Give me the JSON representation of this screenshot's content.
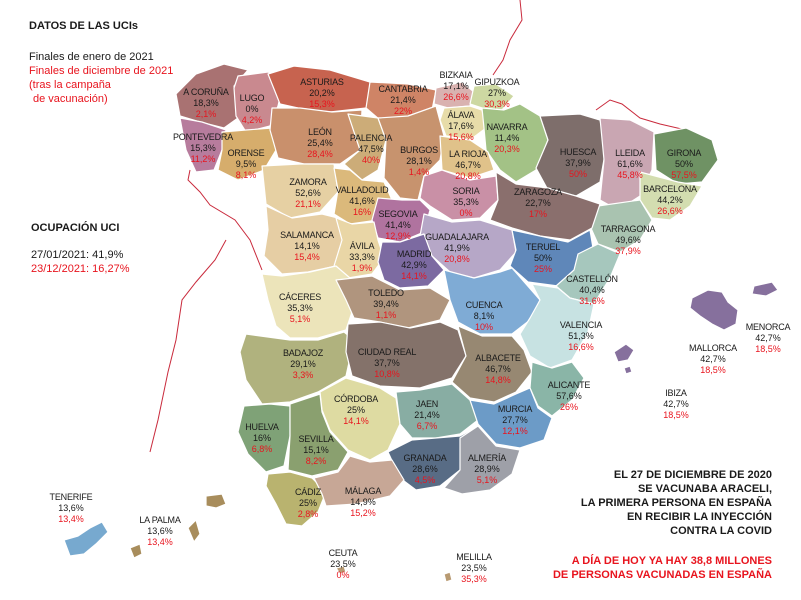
{
  "header": {
    "title": "DATOS DE LAS UCIs",
    "legend_2021_start": "Finales de enero de 2021",
    "legend_2021_end": "Finales de diciembre de 2021",
    "legend_note_1": " (tras la campaña",
    "legend_note_2": "de vacunación)"
  },
  "occupancy": {
    "title": "OCUPACIÓN UCI",
    "jan": "27/01/2021: 41,9%",
    "dec": "23/12/2021: 16,27%"
  },
  "note": {
    "lines": [
      "EL 27 DE DICIEMBRE DE 2020",
      "SE VACUNABA ARACELI,",
      "LA PRIMERA PERSONA EN ESPAÑA",
      "EN RECIBIR LA INYECCIÓN",
      "CONTRA LA COVID"
    ],
    "red_lines": [
      "A DÍA DE HOY YA HAY 38,8 MILLONES",
      "DE PERSONAS VACUNADAS EN ESPAÑA"
    ]
  },
  "colors": {
    "accent_red": "#e8141e",
    "text": "#1a1a1a",
    "border": "#c92a3c"
  },
  "provinces": [
    {
      "id": "a-coruna",
      "name": "A Coruña",
      "jan": "18,3%",
      "dec": "2,1%",
      "color": "#a97272"
    },
    {
      "id": "lugo",
      "name": "Lugo",
      "jan": "0%",
      "dec": "4,2%",
      "color": "#c9898f"
    },
    {
      "id": "asturias",
      "name": "Asturias",
      "jan": "20,2%",
      "dec": "15,3%",
      "color": "#c7634f"
    },
    {
      "id": "cantabria",
      "name": "Cantabria",
      "jan": "21,4%",
      "dec": "22%",
      "color": "#cf8466"
    },
    {
      "id": "bizkaia",
      "name": "Bizkaia",
      "jan": "17,1%",
      "dec": "26,6%",
      "color": "#d9b2b0"
    },
    {
      "id": "gipuzkoa",
      "name": "Gipuzkoa",
      "jan": "27%",
      "dec": "30,3%",
      "color": "#cdd8a2"
    },
    {
      "id": "alava",
      "name": "Álava",
      "jan": "17,6%",
      "dec": "15,6%",
      "color": "#e7dca9"
    },
    {
      "id": "navarra",
      "name": "Navarra",
      "jan": "11,4%",
      "dec": "20,3%",
      "color": "#a3c286"
    },
    {
      "id": "huesca",
      "name": "Huesca",
      "jan": "37,9%",
      "dec": "50%",
      "color": "#7e6e6b"
    },
    {
      "id": "lleida",
      "name": "Lleida",
      "jan": "61,6%",
      "dec": "45,8%",
      "color": "#c9a6b2"
    },
    {
      "id": "girona",
      "name": "Girona",
      "jan": "50%",
      "dec": "57,5%",
      "color": "#6f9264"
    },
    {
      "id": "barcelona",
      "name": "Barcelona",
      "jan": "44,2%",
      "dec": "26,6%",
      "color": "#d3ddb0"
    },
    {
      "id": "tarragona",
      "name": "Tarragona",
      "jan": "49,6%",
      "dec": "37,9%",
      "color": "#a9c3b0"
    },
    {
      "id": "pontevedra",
      "name": "Pontevedra",
      "jan": "15,3%",
      "dec": "11,2%",
      "color": "#b77c9d"
    },
    {
      "id": "orense",
      "name": "Orense",
      "jan": "9,5%",
      "dec": "8,1%",
      "color": "#d6ad6c"
    },
    {
      "id": "leon",
      "name": "León",
      "jan": "25,4%",
      "dec": "28,4%",
      "color": "#c9906c"
    },
    {
      "id": "palencia",
      "name": "Palencia",
      "jan": "47,5%",
      "dec": "40%",
      "color": "#ccac78"
    },
    {
      "id": "burgos",
      "name": "Burgos",
      "jan": "28,1%",
      "dec": "1,4%",
      "color": "#c7936e"
    },
    {
      "id": "la-rioja",
      "name": "La Rioja",
      "jan": "46,7%",
      "dec": "20,8%",
      "color": "#e0c28a"
    },
    {
      "id": "zamora",
      "name": "Zamora",
      "jan": "52,6%",
      "dec": "21,1%",
      "color": "#e6d0a3"
    },
    {
      "id": "valladolid",
      "name": "Valladolid",
      "jan": "41,6%",
      "dec": "16%",
      "color": "#dbb97b"
    },
    {
      "id": "soria",
      "name": "Soria",
      "jan": "35,3%",
      "dec": "0%",
      "color": "#c990a6"
    },
    {
      "id": "zaragoza",
      "name": "Zaragoza",
      "jan": "22,7%",
      "dec": "17%",
      "color": "#8a6f6d"
    },
    {
      "id": "segovia",
      "name": "Segovia",
      "jan": "41,4%",
      "dec": "12,9%",
      "color": "#b0739f"
    },
    {
      "id": "salamanca",
      "name": "Salamanca",
      "jan": "14,1%",
      "dec": "15,4%",
      "color": "#e6cea4"
    },
    {
      "id": "avila",
      "name": "Ávila",
      "jan": "33,3%",
      "dec": "1,9%",
      "color": "#e9d6a6"
    },
    {
      "id": "guadalajara",
      "name": "Guadalajara",
      "jan": "41,9%",
      "dec": "20,8%",
      "color": "#b6a7c7"
    },
    {
      "id": "teruel",
      "name": "Teruel",
      "jan": "50%",
      "dec": "25%",
      "color": "#5f87b9"
    },
    {
      "id": "madrid",
      "name": "Madrid",
      "jan": "42,9%",
      "dec": "14,1%",
      "color": "#7c6aa1"
    },
    {
      "id": "castellon",
      "name": "Castellón",
      "jan": "40,4%",
      "dec": "31,6%",
      "color": "#a6c7bd"
    },
    {
      "id": "caceres",
      "name": "Cáceres",
      "jan": "35,3%",
      "dec": "5,1%",
      "color": "#ece4ba"
    },
    {
      "id": "toledo",
      "name": "Toledo",
      "jan": "39,4%",
      "dec": "1,1%",
      "color": "#b0957e"
    },
    {
      "id": "cuenca",
      "name": "Cuenca",
      "jan": "8,1%",
      "dec": "10%",
      "color": "#7fabd5"
    },
    {
      "id": "valencia",
      "name": "Valencia",
      "jan": "51,3%",
      "dec": "16,6%",
      "color": "#c7e2e2"
    },
    {
      "id": "badajoz",
      "name": "Badajoz",
      "jan": "29,1%",
      "dec": "3,3%",
      "color": "#b0b27e"
    },
    {
      "id": "ciudad-real",
      "name": "Ciudad Real",
      "jan": "37,7%",
      "dec": "10,8%",
      "color": "#84726a"
    },
    {
      "id": "albacete",
      "name": "Albacete",
      "jan": "46,7%",
      "dec": "14,8%",
      "color": "#978872"
    },
    {
      "id": "alicante",
      "name": "Alicante",
      "jan": "57,6%",
      "dec": "26%",
      "color": "#8ab5a7"
    },
    {
      "id": "cordoba",
      "name": "Córdoba",
      "jan": "25%",
      "dec": "14,1%",
      "color": "#dedba2"
    },
    {
      "id": "jaen",
      "name": "Jaen",
      "jan": "21,4%",
      "dec": "6,7%",
      "color": "#88ada3"
    },
    {
      "id": "murcia",
      "name": "Murcia",
      "jan": "27,7%",
      "dec": "12,1%",
      "color": "#6c9bc7"
    },
    {
      "id": "huelva",
      "name": "Huelva",
      "jan": "16%",
      "dec": "6,8%",
      "color": "#7fa277"
    },
    {
      "id": "sevilla",
      "name": "Sevilla",
      "jan": "15,1%",
      "dec": "8,2%",
      "color": "#8aa06f"
    },
    {
      "id": "granada",
      "name": "Granada",
      "jan": "28,6%",
      "dec": "4,5%",
      "color": "#586c85"
    },
    {
      "id": "almeria",
      "name": "Almería",
      "jan": "28,9%",
      "dec": "5,1%",
      "color": "#9ea0a8"
    },
    {
      "id": "cadiz",
      "name": "Cádiz",
      "jan": "25%",
      "dec": "2,8%",
      "color": "#b9b36f"
    },
    {
      "id": "malaga",
      "name": "Málaga",
      "jan": "14,9%",
      "dec": "15,2%",
      "color": "#c7a796"
    },
    {
      "id": "mallorca",
      "name": "Mallorca",
      "jan": "42,7%",
      "dec": "18,5%",
      "color": "#86709d"
    },
    {
      "id": "menorca",
      "name": "Menorca",
      "jan": "42,7%",
      "dec": "18,5%",
      "color": "#86709d"
    },
    {
      "id": "ibiza",
      "name": "Ibiza",
      "jan": "42,7%",
      "dec": "18,5%",
      "color": "#86709d"
    },
    {
      "id": "tenerife",
      "name": "Tenerife",
      "jan": "13,6%",
      "dec": "13,4%",
      "color": "#77a9cf"
    },
    {
      "id": "la-palma",
      "name": "La Palma",
      "jan": "13,6%",
      "dec": "13,4%",
      "color": "#a88d5c"
    },
    {
      "id": "ceuta",
      "name": "Ceuta",
      "jan": "23,5%",
      "dec": "0%",
      "color": "#b89a72"
    },
    {
      "id": "melilla",
      "name": "Melilla",
      "jan": "23,5%",
      "dec": "35,3%",
      "color": "#b89a72"
    }
  ]
}
